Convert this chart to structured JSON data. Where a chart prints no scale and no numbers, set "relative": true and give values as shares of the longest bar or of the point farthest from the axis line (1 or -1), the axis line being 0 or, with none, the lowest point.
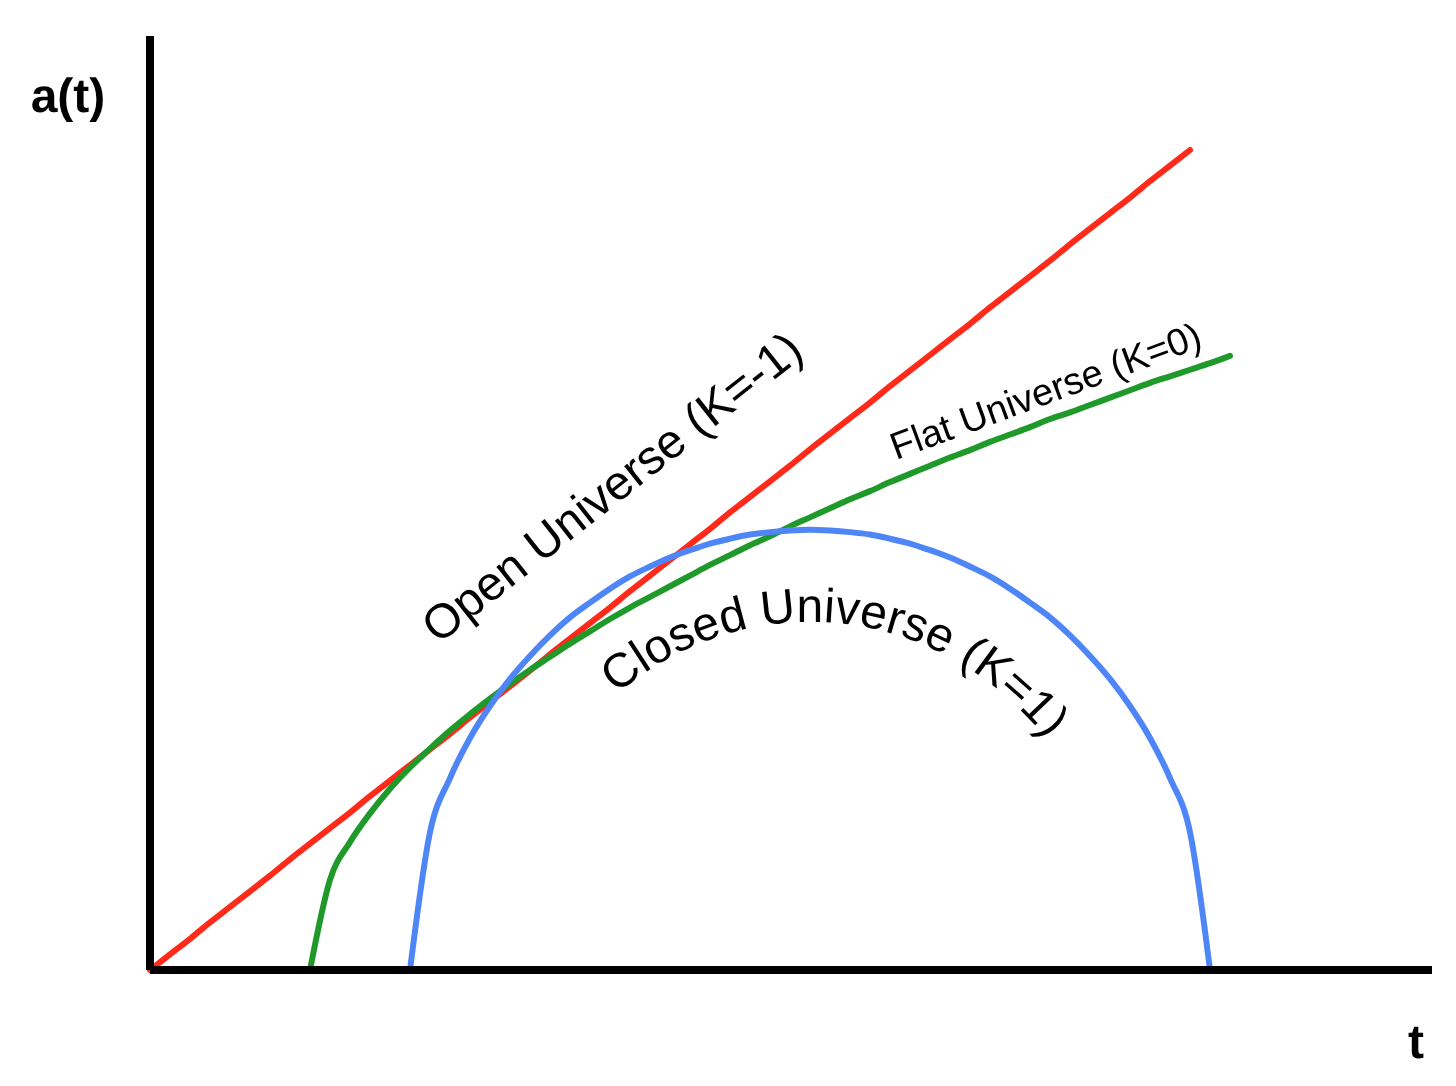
{
  "chart_data": {
    "type": "line",
    "relative": true,
    "xlabel": "t",
    "ylabel": "a(t)",
    "line_style": "solid",
    "marker": "none",
    "categories": [
      null,
      null,
      null,
      null,
      null,
      null,
      null,
      null,
      null,
      null,
      null,
      null,
      null,
      null,
      null,
      null,
      null,
      null,
      null,
      null,
      null,
      null,
      null,
      null,
      null,
      null,
      null,
      null,
      null,
      null,
      null,
      null,
      null,
      null,
      null,
      null,
      null,
      null,
      null,
      null,
      null,
      null,
      null,
      null,
      null,
      null,
      null,
      null,
      null,
      null,
      null,
      null,
      null,
      null,
      null
    ],
    "series": [
      {
        "name": "Open Universe (K=-1)",
        "color": "#ff2a1a",
        "values": [
          0,
          0.019,
          0.038,
          0.058,
          0.077,
          0.096,
          0.115,
          0.135,
          0.154,
          0.173,
          0.192,
          0.212,
          0.231,
          0.25,
          0.269,
          0.288,
          0.308,
          0.327,
          0.346,
          0.365,
          0.385,
          0.404,
          0.423,
          0.442,
          0.462,
          0.481,
          0.5,
          0.519,
          0.538,
          0.558,
          0.577,
          0.596,
          0.615,
          0.635,
          0.654,
          0.673,
          0.692,
          0.712,
          0.731,
          0.75,
          0.769,
          0.788,
          0.808,
          0.827,
          0.846,
          0.865,
          0.885,
          0.904,
          0.923,
          0.942,
          0.962,
          0.981,
          1,
          null,
          null
        ]
      },
      {
        "name": "Flat Universe (K=0)",
        "color": "#1f9a2a",
        "values": [
          null,
          null,
          null,
          null,
          null,
          null,
          null,
          null,
          0,
          0.11,
          0.156,
          0.191,
          0.221,
          0.247,
          0.27,
          0.292,
          0.312,
          0.331,
          0.349,
          0.366,
          0.382,
          0.398,
          0.413,
          0.428,
          0.442,
          0.455,
          0.468,
          0.481,
          0.494,
          0.506,
          0.518,
          0.529,
          0.541,
          0.552,
          0.563,
          0.574,
          0.584,
          0.595,
          0.605,
          0.615,
          0.625,
          0.634,
          0.644,
          0.653,
          0.662,
          0.672,
          0.68,
          0.689,
          0.698,
          0.707,
          0.716,
          0.724,
          0.732,
          0.74,
          0.749
        ]
      },
      {
        "name": "Closed Universe (K=1)",
        "color": "#4f86f7",
        "values": [
          null,
          null,
          null,
          null,
          null,
          null,
          null,
          null,
          null,
          null,
          null,
          null,
          null,
          0,
          0.168,
          0.234,
          0.283,
          0.322,
          0.355,
          0.383,
          0.408,
          0.43,
          0.448,
          0.465,
          0.48,
          0.492,
          0.503,
          0.512,
          0.52,
          0.526,
          0.531,
          0.534,
          0.536,
          0.537,
          0.536,
          0.534,
          0.531,
          0.526,
          0.52,
          0.512,
          0.503,
          0.492,
          0.48,
          0.465,
          0.448,
          0.43,
          0.408,
          0.383,
          0.355,
          0.322,
          0.283,
          0.234,
          0.168,
          0,
          null
        ]
      }
    ]
  }
}
